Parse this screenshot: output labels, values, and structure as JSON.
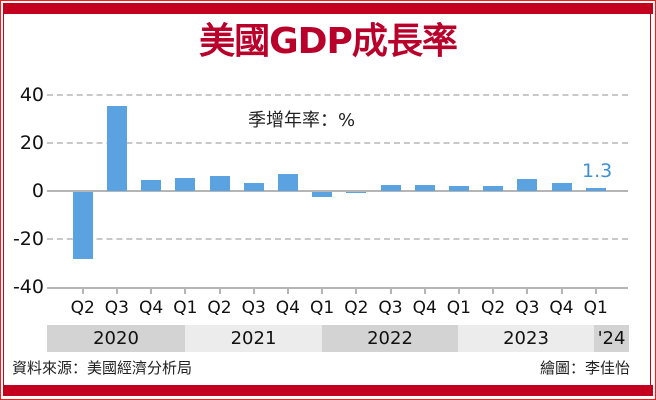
{
  "title": "美國GDP成長率",
  "unit_label": "季增年率：%",
  "source": "資料來源：美國經濟分析局",
  "credit": "繪圖：李佳怡",
  "colors": {
    "frame": "#c4001f",
    "title": "#b8002a",
    "bar": "#5ba3e0",
    "value_label": "#3f8fd6",
    "year_band_dark": "#d3d3d3",
    "year_band_light": "#ececec"
  },
  "y_axis": {
    "ticks": [
      "40",
      "20",
      "0",
      "-20",
      "-40"
    ]
  },
  "year_bands": [
    {
      "label": "2020",
      "shade": "dark"
    },
    {
      "label": "2021",
      "shade": "light"
    },
    {
      "label": "2022",
      "shade": "dark"
    },
    {
      "label": "2023",
      "shade": "light"
    },
    {
      "label": "'24",
      "shade": "dark"
    }
  ],
  "highlight_label": "1.3",
  "chart_data": {
    "type": "bar",
    "title": "美國GDP成長率",
    "subtitle": "季增年率：%",
    "xlabel": "",
    "ylabel": "季增年率 (%)",
    "ylim": [
      -40,
      40
    ],
    "yticks": [
      40,
      20,
      0,
      -20,
      -40
    ],
    "grid": "horizontal dashed",
    "categories": [
      "2020 Q2",
      "2020 Q3",
      "2020 Q4",
      "2021 Q1",
      "2021 Q2",
      "2021 Q3",
      "2021 Q4",
      "2022 Q1",
      "2022 Q2",
      "2022 Q3",
      "2022 Q4",
      "2023 Q1",
      "2023 Q2",
      "2023 Q3",
      "2023 Q4",
      "2024 Q1"
    ],
    "quarter_labels": [
      "Q2",
      "Q3",
      "Q4",
      "Q1",
      "Q2",
      "Q3",
      "Q4",
      "Q1",
      "Q2",
      "Q3",
      "Q4",
      "Q1",
      "Q2",
      "Q3",
      "Q4",
      "Q1"
    ],
    "values": [
      -28.0,
      35.3,
      4.5,
      5.3,
      6.3,
      3.4,
      7.0,
      -2.0,
      -0.6,
      2.7,
      2.6,
      2.2,
      2.1,
      4.9,
      3.4,
      1.3
    ],
    "annotations": [
      {
        "category": "2024 Q1",
        "text": "1.3"
      }
    ],
    "source": "資料來源：美國經濟分析局"
  }
}
